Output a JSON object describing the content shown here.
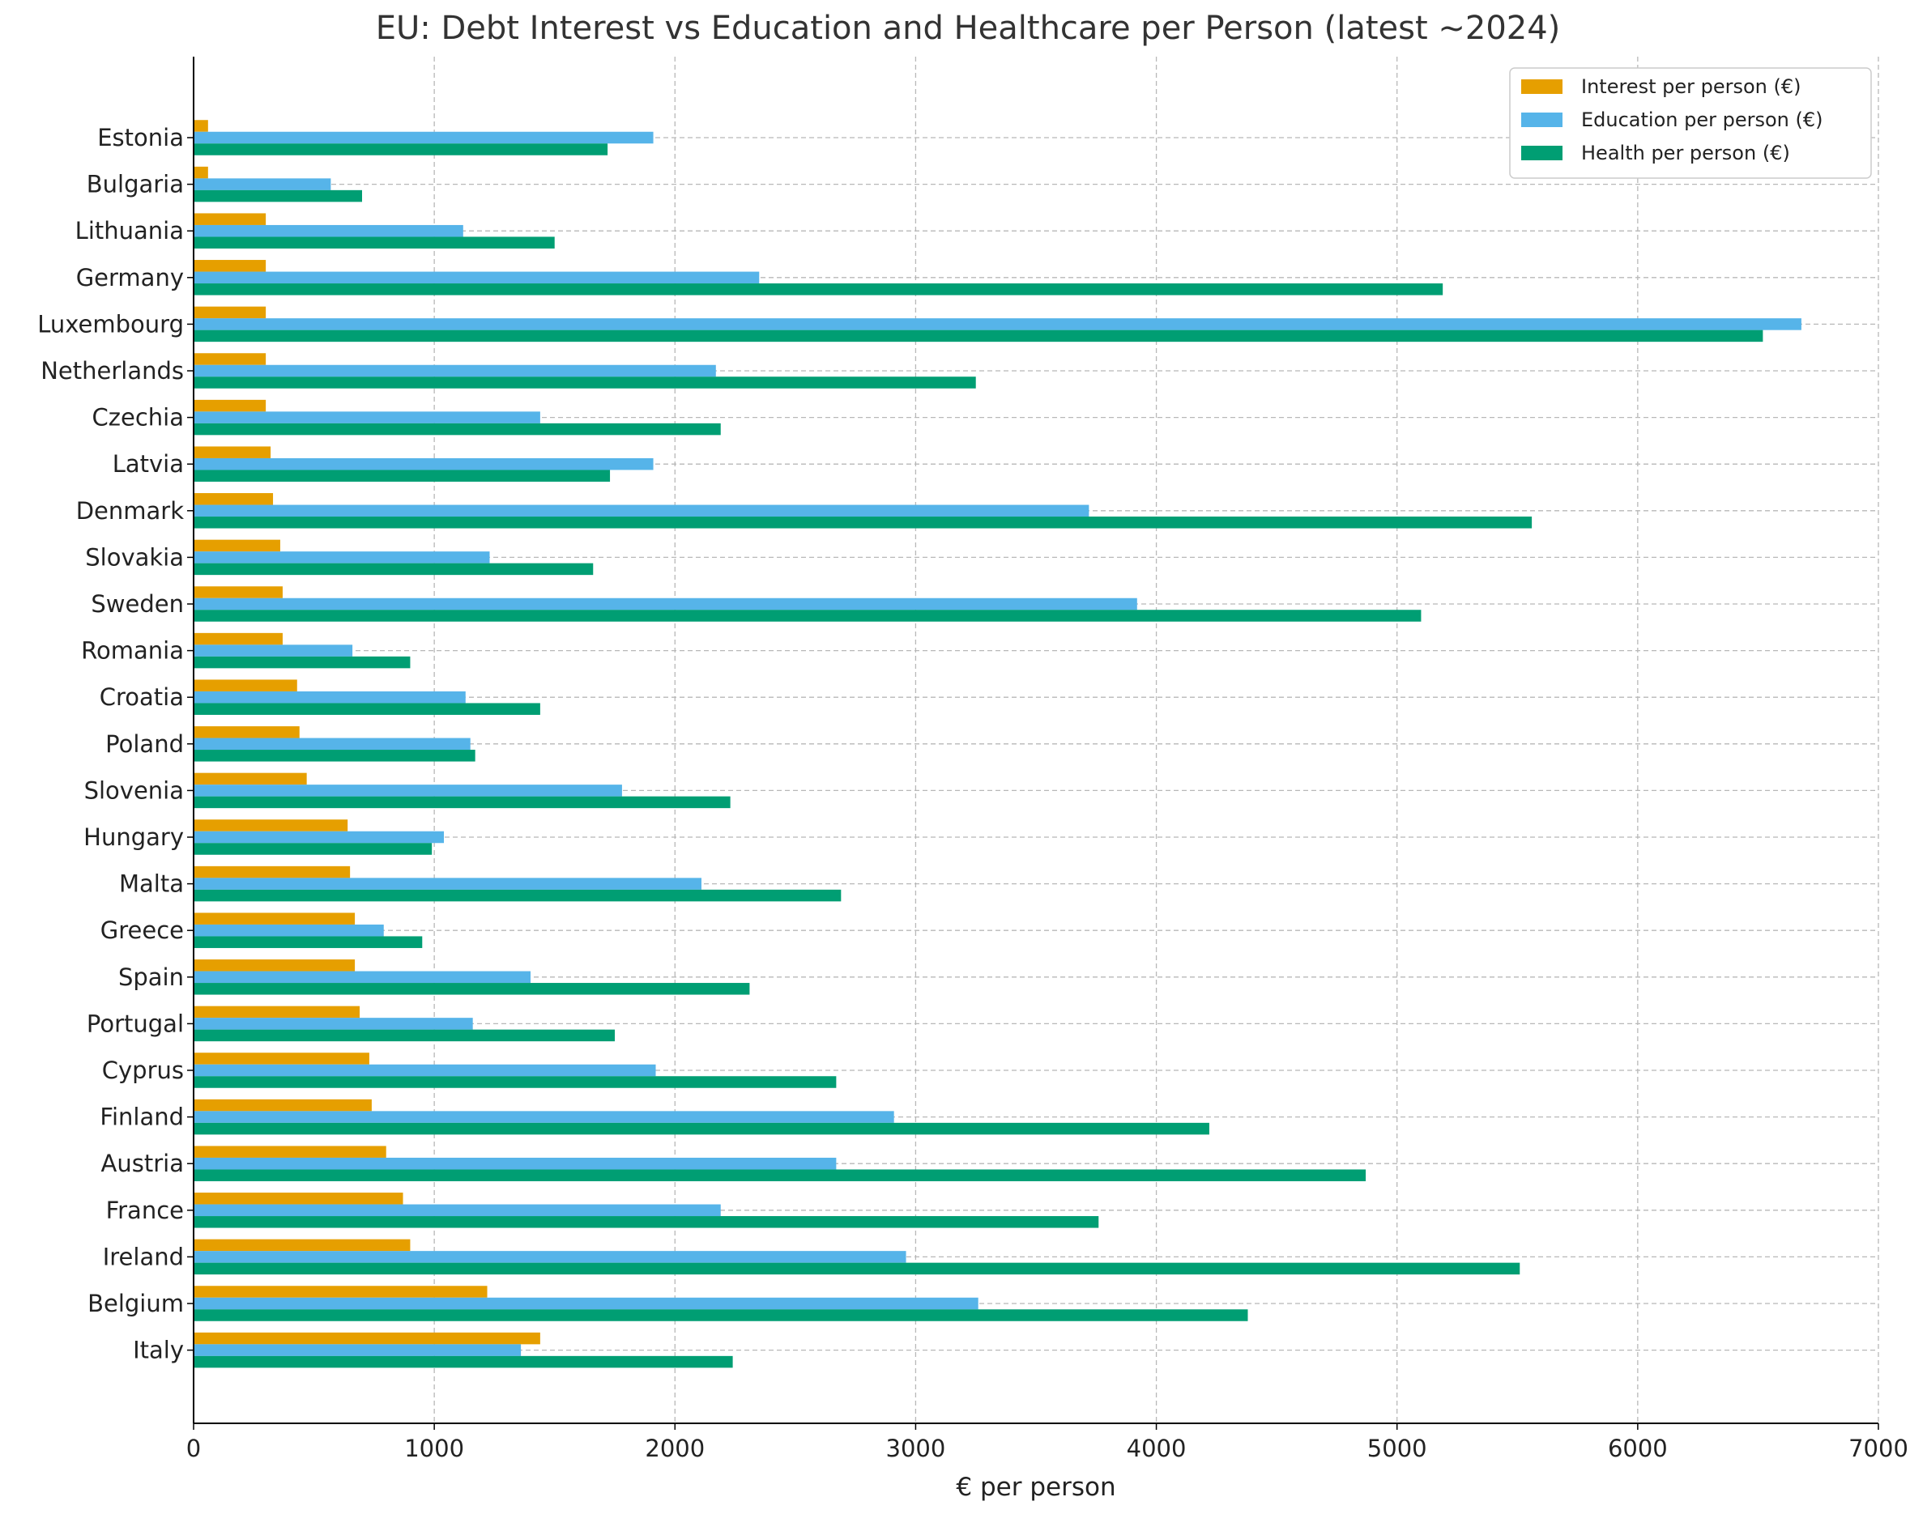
{
  "chart_data": {
    "type": "bar",
    "orientation": "horizontal",
    "title": "EU: Debt Interest vs Education and Healthcare per Person (latest ~2024)",
    "xlabel": "€ per person",
    "ylabel": "",
    "xlim": [
      0,
      7000
    ],
    "xticks": [
      "0",
      "1000",
      "2000",
      "3000",
      "4000",
      "5000",
      "6000",
      "7000"
    ],
    "grid": true,
    "legend_position": "top-right",
    "categories": [
      "Estonia",
      "Bulgaria",
      "Lithuania",
      "Germany",
      "Luxembourg",
      "Netherlands",
      "Czechia",
      "Latvia",
      "Denmark",
      "Slovakia",
      "Sweden",
      "Romania",
      "Croatia",
      "Poland",
      "Slovenia",
      "Hungary",
      "Malta",
      "Greece",
      "Spain",
      "Portugal",
      "Cyprus",
      "Finland",
      "Austria",
      "France",
      "Ireland",
      "Belgium",
      "Italy"
    ],
    "series": [
      {
        "name": "Interest per person (€)",
        "color": "#E69F00",
        "values": [
          60,
          60,
          300,
          300,
          300,
          300,
          300,
          320,
          330,
          360,
          370,
          370,
          430,
          440,
          470,
          640,
          650,
          670,
          670,
          690,
          730,
          740,
          800,
          870,
          900,
          1220,
          1440
        ]
      },
      {
        "name": "Education per person (€)",
        "color": "#56B4E9",
        "values": [
          1910,
          570,
          1120,
          2350,
          6680,
          2170,
          1440,
          1910,
          3720,
          1230,
          3920,
          660,
          1130,
          1150,
          1780,
          1040,
          2110,
          790,
          1400,
          1160,
          1920,
          2910,
          2670,
          2190,
          2960,
          3260,
          1360
        ]
      },
      {
        "name": "Health per person (€)",
        "color": "#009E73",
        "values": [
          1720,
          700,
          1500,
          5190,
          6520,
          3250,
          2190,
          1730,
          5560,
          1660,
          5100,
          900,
          1440,
          1170,
          2230,
          990,
          2690,
          950,
          2310,
          1750,
          2670,
          4220,
          4870,
          3760,
          5510,
          4380,
          2240
        ]
      }
    ]
  }
}
